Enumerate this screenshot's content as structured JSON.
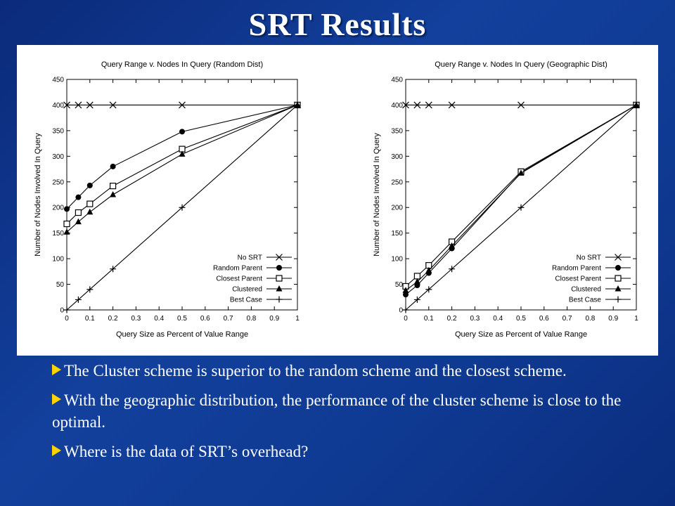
{
  "slide": {
    "title": "SRT Results",
    "bullets": [
      "The Cluster scheme is superior to the random scheme and the closest scheme.",
      "With the geographic distribution, the performance of the cluster scheme is close to the optimal.",
      "Where is the data of SRT’s overhead?"
    ],
    "colors": {
      "background": "#12409c",
      "title": "#ffffff",
      "bullet_marker": "#ffd400",
      "text": "#ffffff"
    }
  },
  "chart_data": [
    {
      "type": "line",
      "title": "Query Range v. Nodes In Query (Random Dist)",
      "xlabel": "Query Size as Percent of Value Range",
      "ylabel": "Number of Nodes Involved In Query",
      "xlim": [
        0,
        1
      ],
      "ylim": [
        0,
        450
      ],
      "x_ticks": [
        "0",
        "0.1",
        "0.2",
        "0.3",
        "0.4",
        "0.5",
        "0.6",
        "0.7",
        "0.8",
        "0.9",
        "1"
      ],
      "y_ticks": [
        "0",
        "50",
        "100",
        "150",
        "200",
        "250",
        "300",
        "350",
        "400",
        "450"
      ],
      "grid": false,
      "legend_position": "bottom-right",
      "series": [
        {
          "name": "No SRT",
          "marker": "x",
          "x": [
            0,
            0.05,
            0.1,
            0.2,
            0.5,
            1
          ],
          "y": [
            400,
            400,
            400,
            400,
            400,
            400
          ]
        },
        {
          "name": "Random Parent",
          "marker": "circle",
          "x": [
            0,
            0.05,
            0.1,
            0.2,
            0.5,
            1
          ],
          "y": [
            197,
            220,
            243,
            280,
            348,
            400
          ]
        },
        {
          "name": "Closest Parent",
          "marker": "square",
          "x": [
            0,
            0.05,
            0.1,
            0.2,
            0.5,
            1
          ],
          "y": [
            168,
            190,
            207,
            242,
            314,
            400
          ]
        },
        {
          "name": "Clustered",
          "marker": "triangle",
          "x": [
            0,
            0.05,
            0.1,
            0.2,
            0.5,
            1
          ],
          "y": [
            152,
            172,
            191,
            225,
            304,
            400
          ]
        },
        {
          "name": "Best Case",
          "marker": "plus",
          "x": [
            0,
            0.05,
            0.1,
            0.2,
            0.5,
            1
          ],
          "y": [
            0,
            20,
            40,
            80,
            200,
            400
          ]
        }
      ]
    },
    {
      "type": "line",
      "title": "Query Range v. Nodes In Query (Geographic Dist)",
      "xlabel": "Query Size as Percent of Value Range",
      "ylabel": "Number of Nodes Involved In Query",
      "xlim": [
        0,
        1
      ],
      "ylim": [
        0,
        450
      ],
      "x_ticks": [
        "0",
        "0.1",
        "0.2",
        "0.3",
        "0.4",
        "0.5",
        "0.6",
        "0.7",
        "0.8",
        "0.9",
        "1"
      ],
      "y_ticks": [
        "0",
        "50",
        "100",
        "150",
        "200",
        "250",
        "300",
        "350",
        "400",
        "450"
      ],
      "grid": false,
      "legend_position": "bottom-right",
      "series": [
        {
          "name": "No SRT",
          "marker": "x",
          "x": [
            0,
            0.05,
            0.1,
            0.2,
            0.5,
            1
          ],
          "y": [
            400,
            400,
            400,
            400,
            400,
            400
          ]
        },
        {
          "name": "Random Parent",
          "marker": "circle",
          "x": [
            0,
            0.05,
            0.1,
            0.2,
            0.5,
            1
          ],
          "y": [
            30,
            48,
            72,
            120,
            268,
            400
          ]
        },
        {
          "name": "Closest Parent",
          "marker": "square",
          "x": [
            0,
            0.05,
            0.1,
            0.2,
            0.5,
            1
          ],
          "y": [
            46,
            66,
            87,
            133,
            270,
            400
          ]
        },
        {
          "name": "Clustered",
          "marker": "triangle",
          "x": [
            0,
            0.05,
            0.1,
            0.2,
            0.5,
            1
          ],
          "y": [
            38,
            55,
            77,
            125,
            267,
            400
          ]
        },
        {
          "name": "Best Case",
          "marker": "plus",
          "x": [
            0,
            0.05,
            0.1,
            0.2,
            0.5,
            1
          ],
          "y": [
            0,
            20,
            40,
            80,
            200,
            400
          ]
        }
      ]
    }
  ]
}
